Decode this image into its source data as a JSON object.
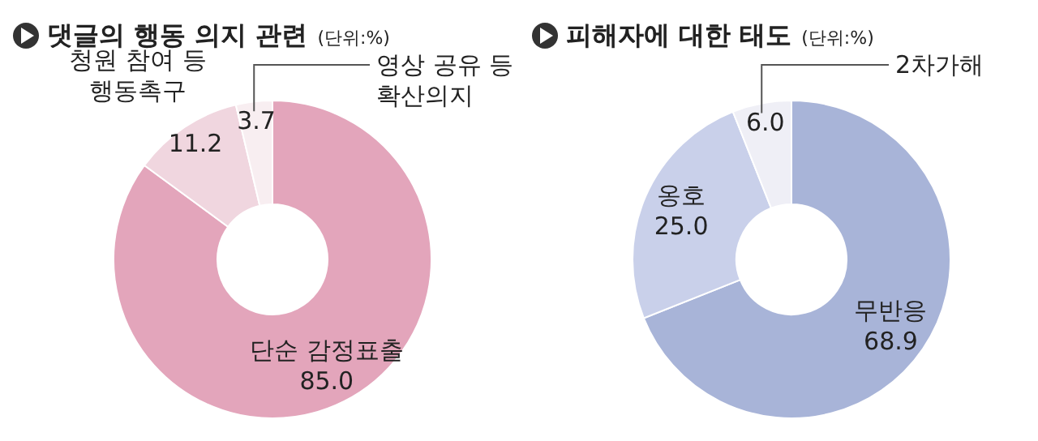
{
  "chart_data": [
    {
      "type": "donut",
      "title": "댓글의 행동 의지 관련",
      "subtitle": "(단위:%)",
      "categories": [
        "단순 감정표출",
        "청원 참여 등\n행동촉구",
        "영상 공유 등\n확산의지"
      ],
      "values": [
        85.0,
        11.2,
        3.7
      ],
      "value_labels": [
        "85.0",
        "11.2",
        "3.7"
      ],
      "colors": [
        "#e3a5bb",
        "#f0d6df",
        "#f8eef1"
      ]
    },
    {
      "type": "donut",
      "title": "피해자에 대한 태도",
      "subtitle": "(단위:%)",
      "categories": [
        "무반응",
        "옹호",
        "2차가해"
      ],
      "values": [
        68.9,
        25.0,
        6.0
      ],
      "value_labels": [
        "68.9",
        "25.0",
        "6.0"
      ],
      "colors": [
        "#a8b4d8",
        "#c9d0ea",
        "#efeff6"
      ]
    }
  ]
}
